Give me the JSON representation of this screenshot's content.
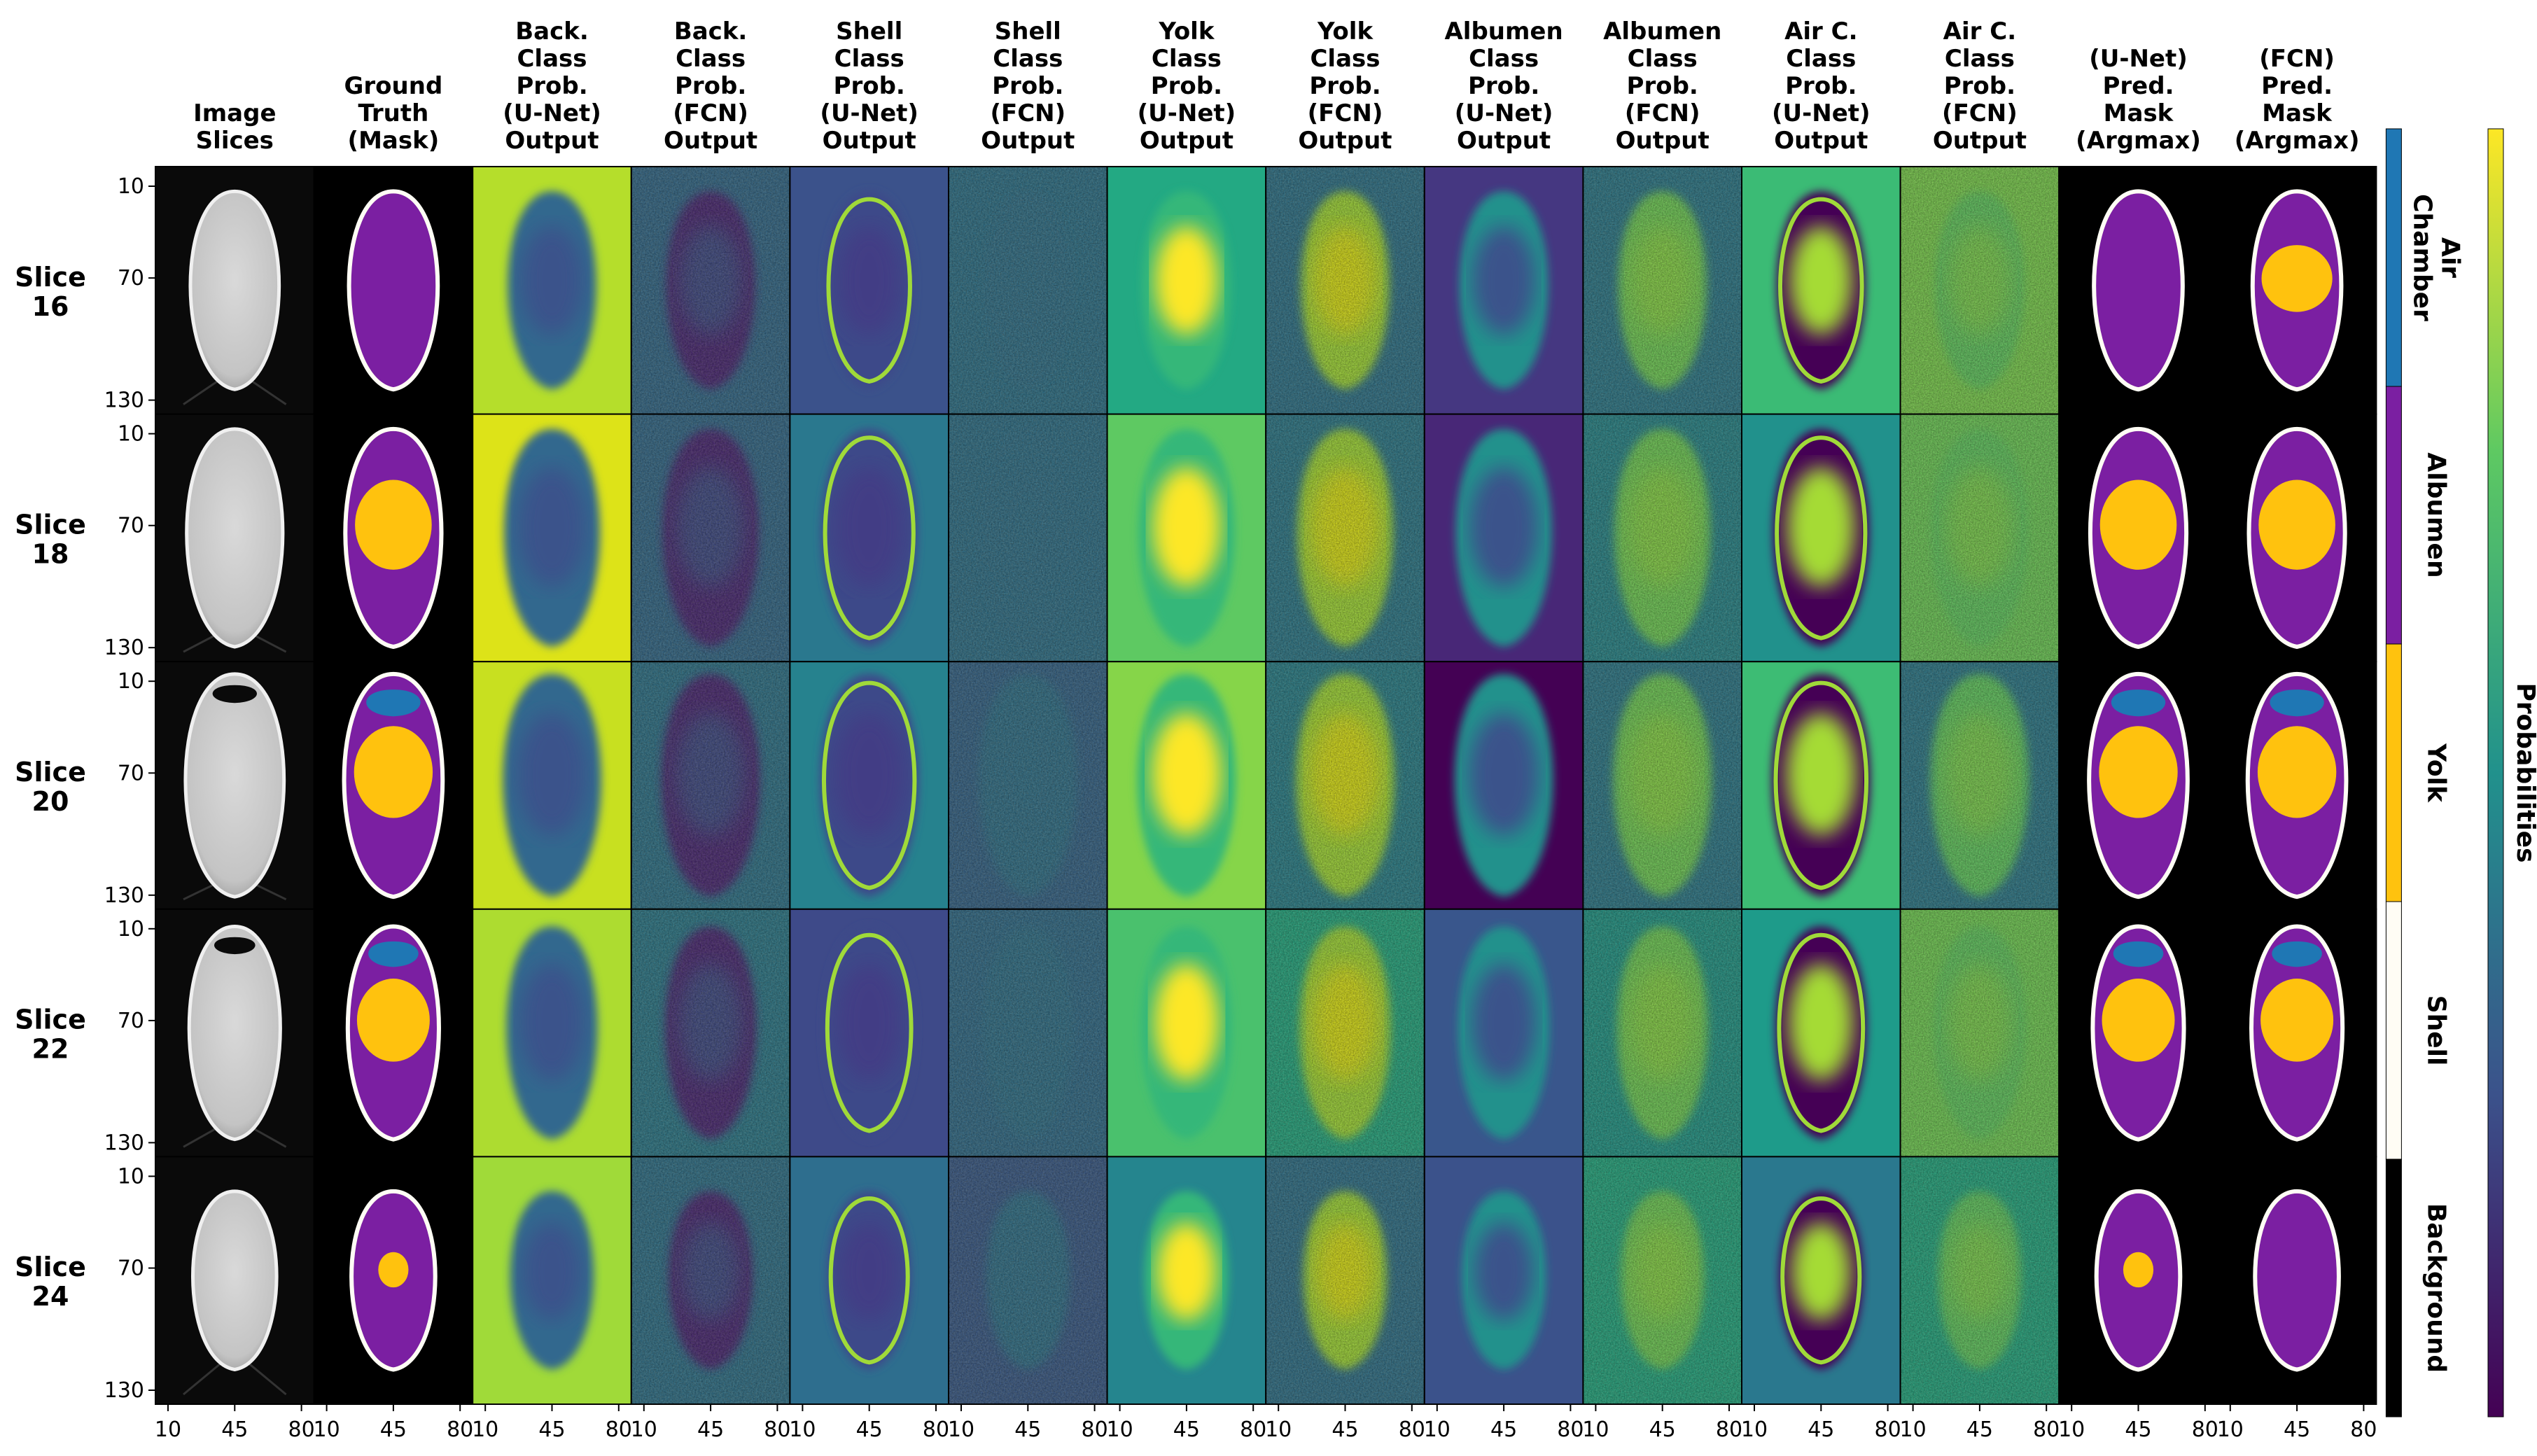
{
  "figure": {
    "columns": [
      {
        "key": "image",
        "header": [
          "Image",
          "Slices"
        ],
        "kind": "ct"
      },
      {
        "key": "gt",
        "header": [
          "Ground",
          "Truth",
          "(Mask)"
        ],
        "kind": "mask"
      },
      {
        "key": "back_unet",
        "header": [
          "Back.",
          "Class",
          "Prob.",
          "(U-Net)",
          "Output"
        ],
        "kind": "prob_smooth"
      },
      {
        "key": "back_fcn",
        "header": [
          "Back.",
          "Class",
          "Prob.",
          "(FCN)",
          "Output"
        ],
        "kind": "prob_noisy"
      },
      {
        "key": "shell_unet",
        "header": [
          "Shell",
          "Class",
          "Prob.",
          "(U-Net)",
          "Output"
        ],
        "kind": "prob_smooth"
      },
      {
        "key": "shell_fcn",
        "header": [
          "Shell",
          "Class",
          "Prob.",
          "(FCN)",
          "Output"
        ],
        "kind": "prob_noisy"
      },
      {
        "key": "yolk_unet",
        "header": [
          "Yolk",
          "Class",
          "Prob.",
          "(U-Net)",
          "Output"
        ],
        "kind": "prob_smooth"
      },
      {
        "key": "yolk_fcn",
        "header": [
          "Yolk",
          "Class",
          "Prob.",
          "(FCN)",
          "Output"
        ],
        "kind": "prob_noisy"
      },
      {
        "key": "alb_unet",
        "header": [
          "Albumen",
          "Class",
          "Prob.",
          "(U-Net)",
          "Output"
        ],
        "kind": "prob_smooth"
      },
      {
        "key": "alb_fcn",
        "header": [
          "Albumen",
          "Class",
          "Prob.",
          "(FCN)",
          "Output"
        ],
        "kind": "prob_noisy"
      },
      {
        "key": "air_unet",
        "header": [
          "Air C.",
          "Class",
          "Prob.",
          "(U-Net)",
          "Output"
        ],
        "kind": "prob_smooth"
      },
      {
        "key": "air_fcn",
        "header": [
          "Air C.",
          "Class",
          "Prob.",
          "(FCN)",
          "Output"
        ],
        "kind": "prob_noisy"
      },
      {
        "key": "pred_unet",
        "header": [
          "(U-Net)",
          "Pred.",
          "Mask",
          "(Argmax)"
        ],
        "kind": "mask"
      },
      {
        "key": "pred_fcn",
        "header": [
          "(FCN)",
          "Pred.",
          "Mask",
          "(Argmax)"
        ],
        "kind": "mask"
      }
    ],
    "rows": [
      {
        "label": [
          "Slice",
          "16"
        ]
      },
      {
        "label": [
          "Slice",
          "18"
        ]
      },
      {
        "label": [
          "Slice",
          "20"
        ]
      },
      {
        "label": [
          "Slice",
          "22"
        ]
      },
      {
        "label": [
          "Slice",
          "24"
        ]
      }
    ],
    "y_ticks": [
      "10",
      "70",
      "130"
    ],
    "x_ticks": [
      "10",
      "45",
      "80"
    ],
    "class_legend": [
      {
        "label": [
          "Air",
          "Chamber"
        ],
        "color": "#1f77b4"
      },
      {
        "label": [
          "Albumen"
        ],
        "color": "#7b1fa2"
      },
      {
        "label": [
          "Yolk"
        ],
        "color": "#ffc20e"
      },
      {
        "label": [
          "Shell"
        ],
        "color": "#fffdf5"
      },
      {
        "label": [
          "Background"
        ],
        "color": "#000000"
      }
    ],
    "colorbar": {
      "label": "Probabilities",
      "colormap": "viridis"
    },
    "colors": {
      "air": "#1f77b4",
      "albumen": "#7b1fa2",
      "yolk": "#ffc20e",
      "shell": "#fffdf5",
      "background": "#000000",
      "viridis_low": "#440154",
      "viridis_mid": "#21918c",
      "viridis_high": "#fde725"
    }
  }
}
